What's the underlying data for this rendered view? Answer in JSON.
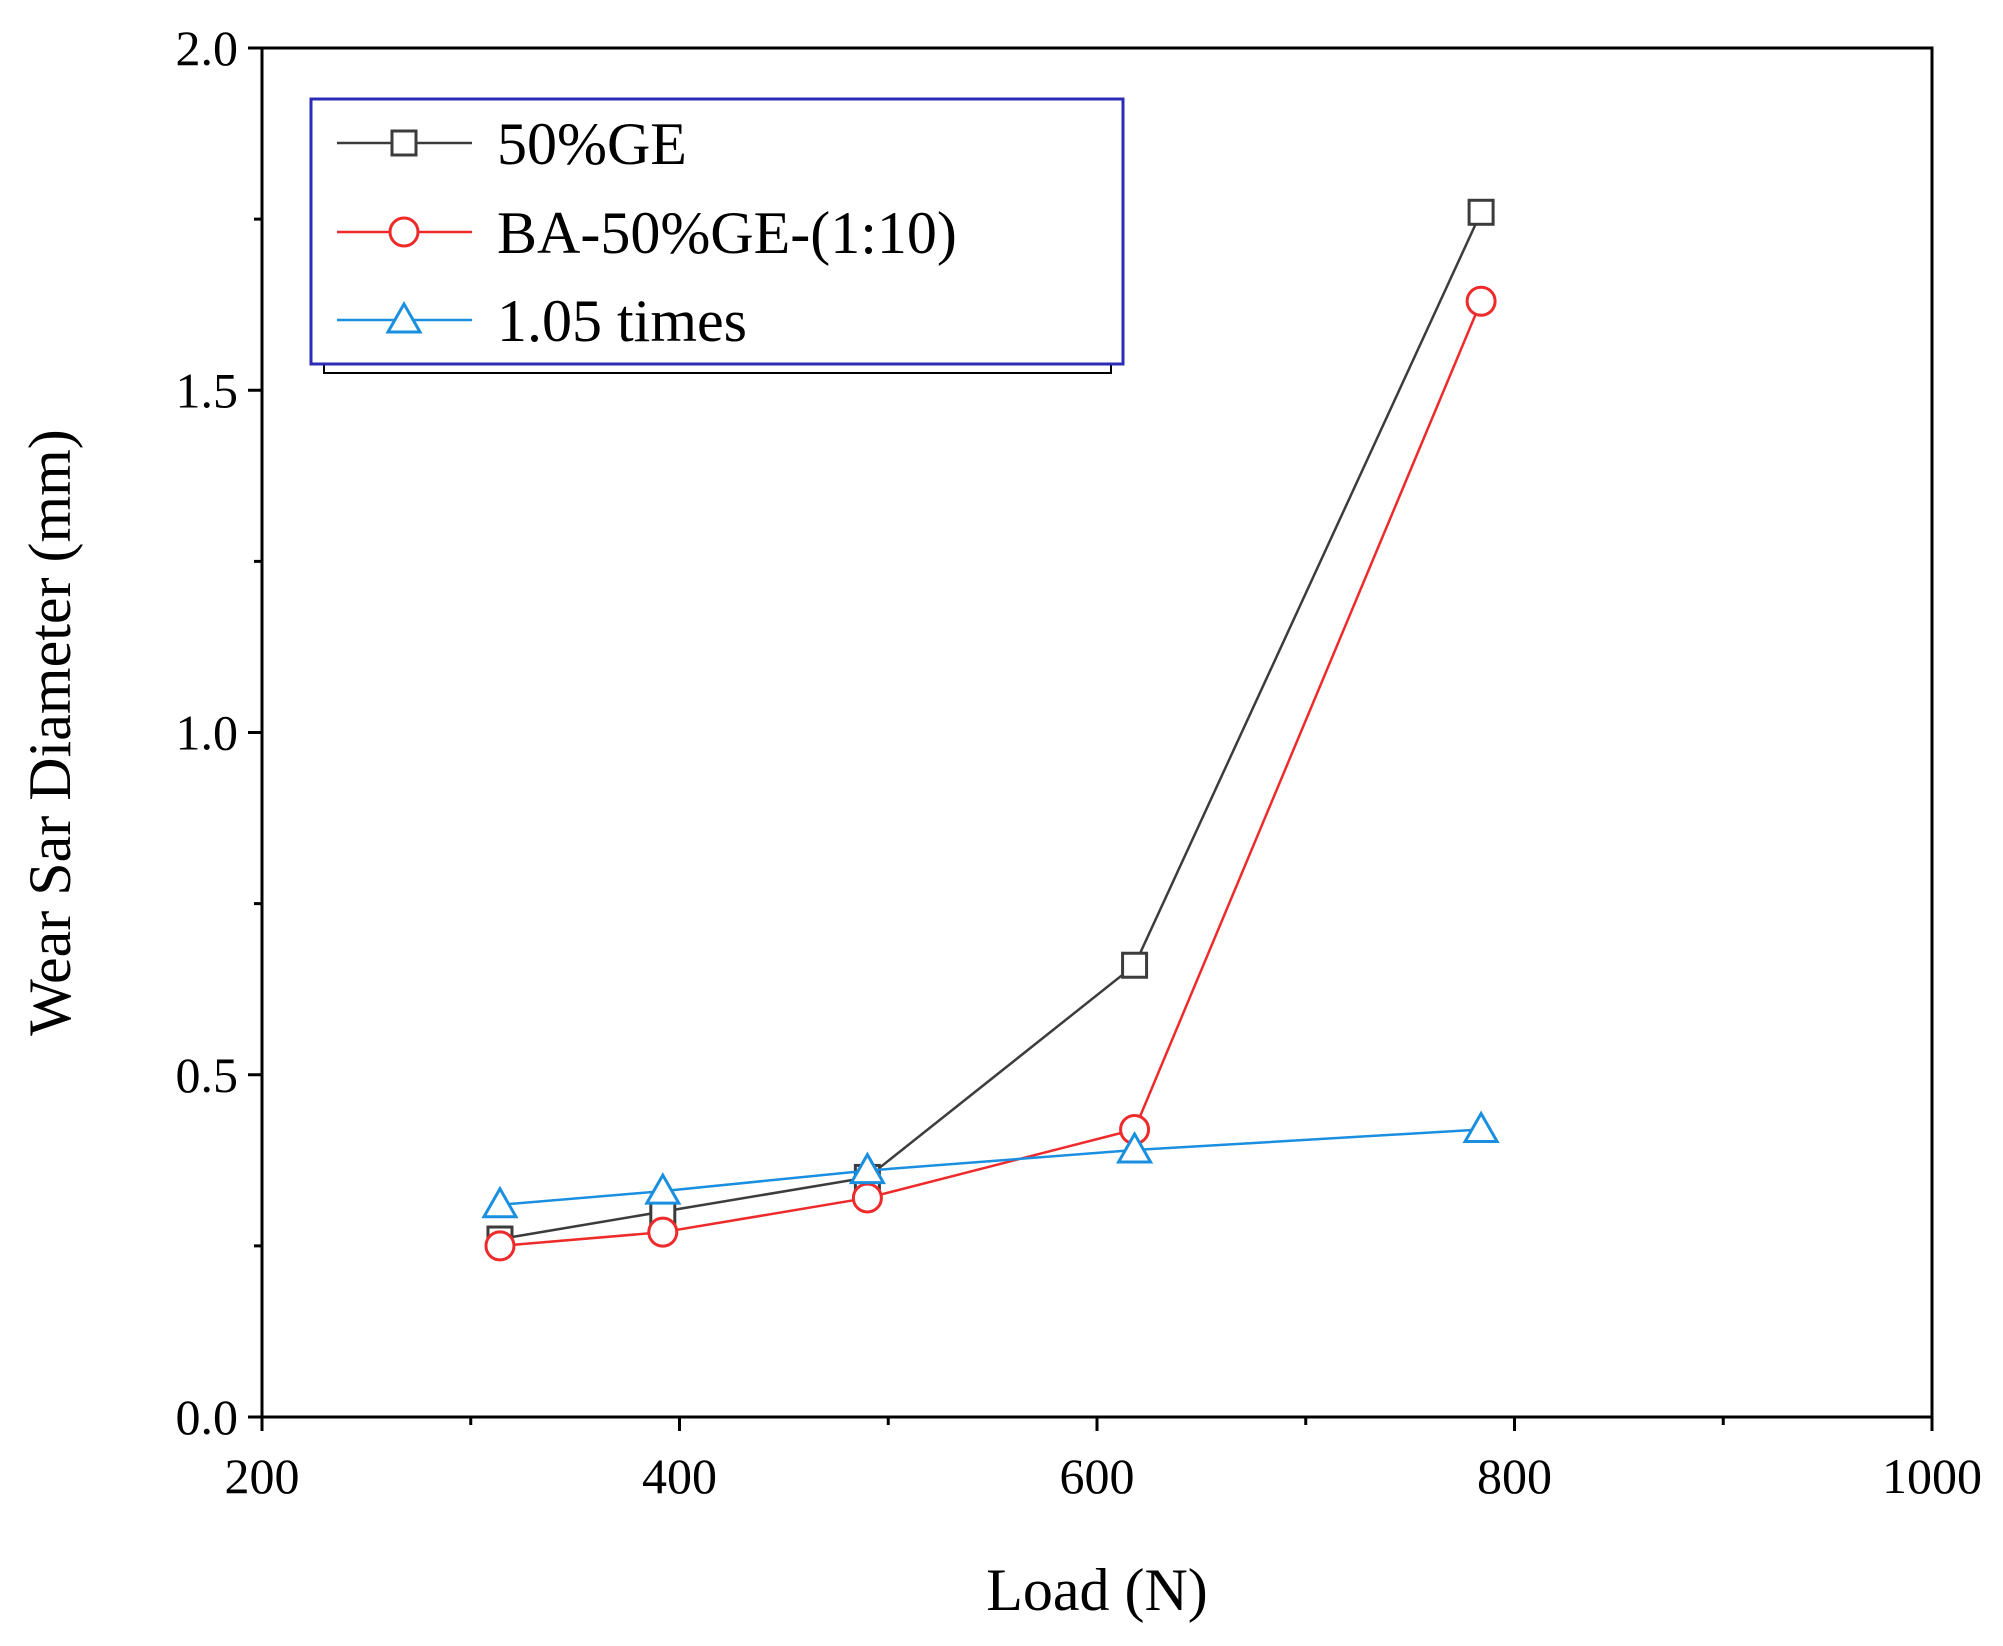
{
  "chart_data": {
    "type": "line",
    "title": "",
    "xlabel": "Load (N)",
    "ylabel": "Wear Sar Diameter (mm)",
    "xlim": [
      200,
      1000
    ],
    "ylim": [
      0.0,
      2.0
    ],
    "x_ticks": [
      "200",
      "400",
      "600",
      "800",
      "1000"
    ],
    "y_ticks": [
      "0.0",
      "0.5",
      "1.0",
      "1.5",
      "2.0"
    ],
    "x_minor_ticks": [
      300,
      500,
      700,
      900
    ],
    "y_minor_ticks": [
      0.25,
      0.75,
      1.25,
      1.75
    ],
    "grid": false,
    "legend_position": "top-left",
    "series": [
      {
        "name": "50%GE",
        "marker": "square",
        "color": "#3c3c3c",
        "x": [
          314,
          392,
          490,
          618,
          784
        ],
        "y": [
          0.26,
          0.3,
          0.35,
          0.66,
          1.76
        ]
      },
      {
        "name": "BA-50%GE-(1:10)",
        "marker": "circle",
        "color": "#ee2a2a",
        "x": [
          314,
          392,
          490,
          618,
          784
        ],
        "y": [
          0.25,
          0.27,
          0.32,
          0.42,
          1.63
        ]
      },
      {
        "name": "1.05 times",
        "marker": "triangle",
        "color": "#1a8fe0",
        "x": [
          314,
          392,
          490,
          618,
          784
        ],
        "y": [
          0.31,
          0.33,
          0.36,
          0.39,
          0.42
        ]
      }
    ]
  }
}
